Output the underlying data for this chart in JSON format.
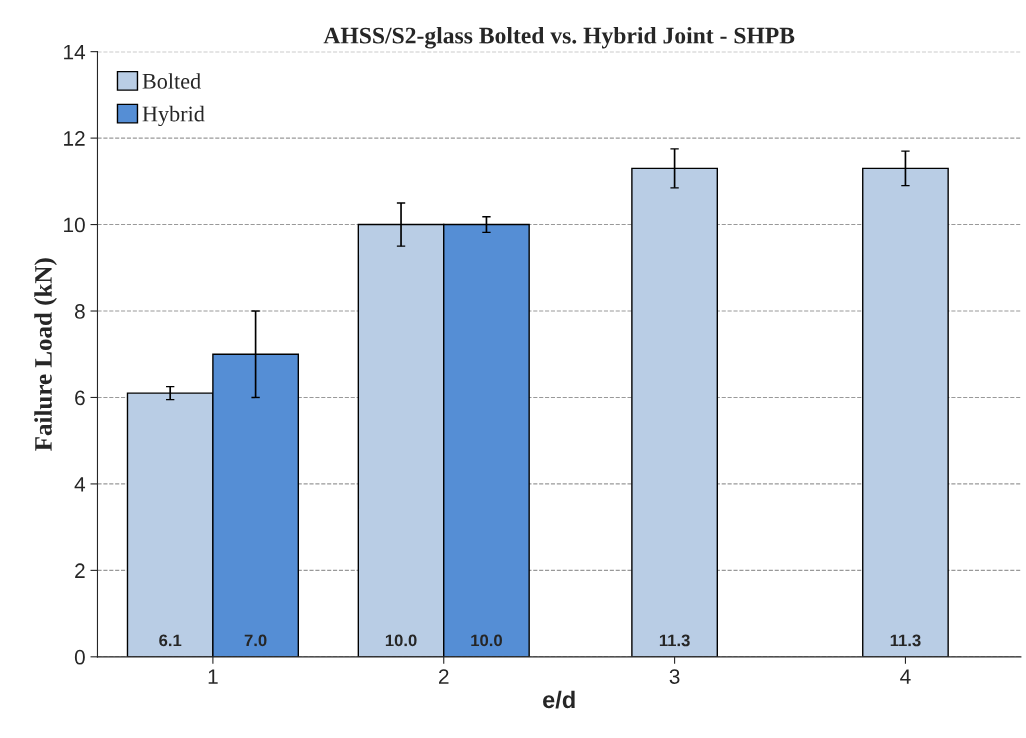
{
  "chart_data": {
    "type": "bar",
    "title": "AHSS/S2-glass Bolted vs. Hybrid Joint - SHPB",
    "xlabel": "e/d",
    "ylabel": "Failure Load (kN)",
    "categories": [
      "1",
      "2",
      "3",
      "4"
    ],
    "series": [
      {
        "name": "Bolted",
        "color": "#b9cde5",
        "values": [
          6.1,
          10.0,
          11.3,
          11.3
        ],
        "errors": [
          0.15,
          0.5,
          0.45,
          0.4
        ],
        "value_labels": [
          "6.1",
          "10.0",
          "11.3",
          "11.3"
        ]
      },
      {
        "name": "Hybrid",
        "color": "#558ed5",
        "values": [
          7.0,
          10.0,
          null,
          null
        ],
        "errors": [
          1.0,
          0.18,
          null,
          null
        ],
        "value_labels": [
          "7.0",
          "10.0",
          null,
          null
        ]
      }
    ],
    "ylim": [
      0,
      14
    ],
    "yticks": [
      0,
      2,
      4,
      6,
      8,
      10,
      12,
      14
    ],
    "grid": "y",
    "legend": "top left"
  }
}
